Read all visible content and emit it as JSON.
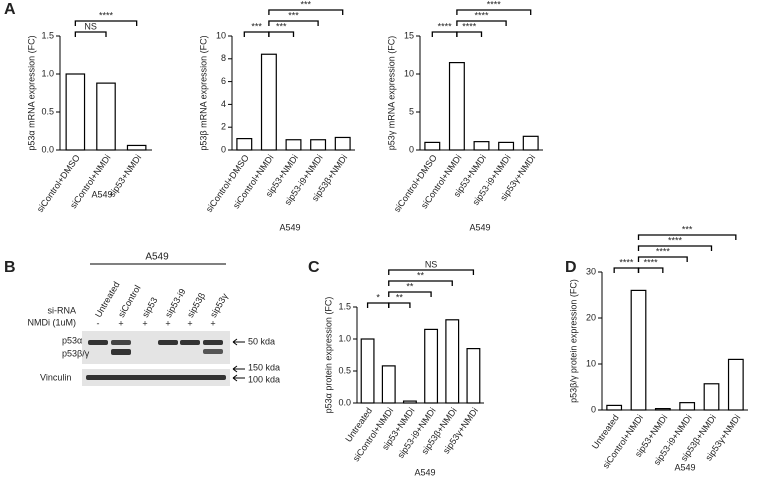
{
  "panel_labels": [
    "A",
    "B",
    "C",
    "D"
  ],
  "blot": {
    "cell_line": "A549",
    "lanes": [
      "Untreated",
      "siControl",
      "sip53",
      "sip53-i9",
      "sip53β",
      "sip53γ"
    ],
    "row_labels": [
      "si-RNA",
      "NMDi (1uM)"
    ],
    "nmdi": [
      "-",
      "+",
      "+",
      "+",
      "+",
      "+"
    ],
    "bands": [
      "p53α",
      "p53β/γ",
      "Vinculin"
    ],
    "markers": [
      "50 kda",
      "150 kda",
      "100 kda"
    ]
  },
  "chart_data": [
    {
      "type": "bar",
      "ylabel": "p53α mRNA expression (FC)",
      "xlabel": "A549",
      "color": "#ffffff",
      "edge_color": "#000000",
      "categories": [
        "siControl+DMSO",
        "siControl+NMDi",
        "sip53+NMDi"
      ],
      "values": [
        1.0,
        0.88,
        0.06
      ],
      "ylim": [
        0,
        1.5
      ],
      "yticks": [
        {
          "value": 0,
          "label": "0.0"
        },
        {
          "value": 0.5,
          "label": "0.5"
        },
        {
          "value": 1,
          "label": "1.0"
        },
        {
          "value": 1.5,
          "label": "1.5"
        }
      ],
      "brackets": [
        {
          "label": "NS",
          "between": [
            "siControl+DMSO",
            "siControl+NMDi"
          ]
        },
        {
          "label": "****",
          "between": [
            "siControl+DMSO",
            "sip53+NMDi"
          ]
        }
      ]
    },
    {
      "type": "bar",
      "ylabel": "p53β mRNA expression (FC)",
      "xlabel": "A549",
      "color": "#ffffff",
      "edge_color": "#000000",
      "categories": [
        "siControl+DMSO",
        "siControl+NMDi",
        "sip53+NMDi",
        "sip53-i9+NMDi",
        "sip53β+NMDi"
      ],
      "values": [
        1.0,
        8.4,
        0.9,
        0.9,
        1.1
      ],
      "ylim": [
        0,
        10
      ],
      "yticks": [
        0,
        2,
        4,
        6,
        8,
        10
      ],
      "brackets": [
        {
          "label": "***",
          "between": [
            "siControl+DMSO",
            "siControl+NMDi"
          ]
        },
        {
          "label": "***",
          "between": [
            "siControl+NMDi",
            "sip53+NMDi"
          ]
        },
        {
          "label": "***",
          "between": [
            "siControl+NMDi",
            "sip53-i9+NMDi"
          ]
        },
        {
          "label": "***",
          "between": [
            "siControl+NMDi",
            "sip53β+NMDi"
          ]
        }
      ]
    },
    {
      "type": "bar",
      "ylabel": "p53γ mRNA expression (FC)",
      "xlabel": "A549",
      "color": "#ffffff",
      "edge_color": "#000000",
      "categories": [
        "siControl+DMSO",
        "siControl+NMDi",
        "sip53+NMDi",
        "sip53-i9+NMDi",
        "sip53γ+NMDi"
      ],
      "values": [
        1.0,
        11.5,
        1.1,
        1.0,
        1.8
      ],
      "ylim": [
        0,
        15
      ],
      "yticks": [
        0,
        5,
        10,
        15
      ],
      "brackets": [
        {
          "label": "****",
          "between": [
            "siControl+DMSO",
            "siControl+NMDi"
          ]
        },
        {
          "label": "****",
          "between": [
            "siControl+NMDi",
            "sip53+NMDi"
          ]
        },
        {
          "label": "****",
          "between": [
            "siControl+NMDi",
            "sip53-i9+NMDi"
          ]
        },
        {
          "label": "****",
          "between": [
            "siControl+NMDi",
            "sip53γ+NMDi"
          ]
        }
      ]
    },
    {
      "type": "bar",
      "ylabel": "p53α protein expression (FC)",
      "xlabel": "A549",
      "color": "#ffffff",
      "edge_color": "#000000",
      "categories": [
        "Untreated",
        "siControl+NMDi",
        "sip53+NMDi",
        "sip53-i9+NMDi",
        "sip53β+NMDi",
        "sip53γ+NMDi"
      ],
      "values": [
        1.0,
        0.58,
        0.03,
        1.15,
        1.3,
        0.85
      ],
      "ylim": [
        0,
        1.5
      ],
      "yticks": [
        {
          "value": 0,
          "label": "0.0"
        },
        {
          "value": 0.5,
          "label": "0.5"
        },
        {
          "value": 1,
          "label": "1.0"
        },
        {
          "value": 1.5,
          "label": "1.5"
        }
      ],
      "brackets": [
        {
          "label": "*",
          "between": [
            "Untreated",
            "siControl+NMDi"
          ]
        },
        {
          "label": "**",
          "between": [
            "siControl+NMDi",
            "sip53+NMDi"
          ]
        },
        {
          "label": "**",
          "between": [
            "siControl+NMDi",
            "sip53-i9+NMDi"
          ]
        },
        {
          "label": "**",
          "between": [
            "siControl+NMDi",
            "sip53β+NMDi"
          ]
        },
        {
          "label": "NS",
          "between": [
            "siControl+NMDi",
            "sip53γ+NMDi"
          ]
        }
      ]
    },
    {
      "type": "bar",
      "ylabel": "p53β/γ protein expression (FC)",
      "xlabel": "A549",
      "color": "#ffffff",
      "edge_color": "#000000",
      "categories": [
        "Untreated",
        "siControl+NMDi",
        "sip53+NMDi",
        "sip53-i9+NMDi",
        "sip53β+NMDi",
        "sip53γ+NMDi"
      ],
      "values": [
        1,
        26,
        0.3,
        1.6,
        5.7,
        11
      ],
      "ylim": [
        0,
        30
      ],
      "yticks": [
        0,
        10,
        20,
        30
      ],
      "brackets": [
        {
          "label": "****",
          "between": [
            "Untreated",
            "siControl+NMDi"
          ]
        },
        {
          "label": "****",
          "between": [
            "siControl+NMDi",
            "sip53+NMDi"
          ]
        },
        {
          "label": "****",
          "between": [
            "siControl+NMDi",
            "sip53-i9+NMDi"
          ]
        },
        {
          "label": "****",
          "between": [
            "siControl+NMDi",
            "sip53β+NMDi"
          ]
        },
        {
          "label": "***",
          "between": [
            "siControl+NMDi",
            "sip53γ+NMDi"
          ]
        }
      ]
    }
  ]
}
